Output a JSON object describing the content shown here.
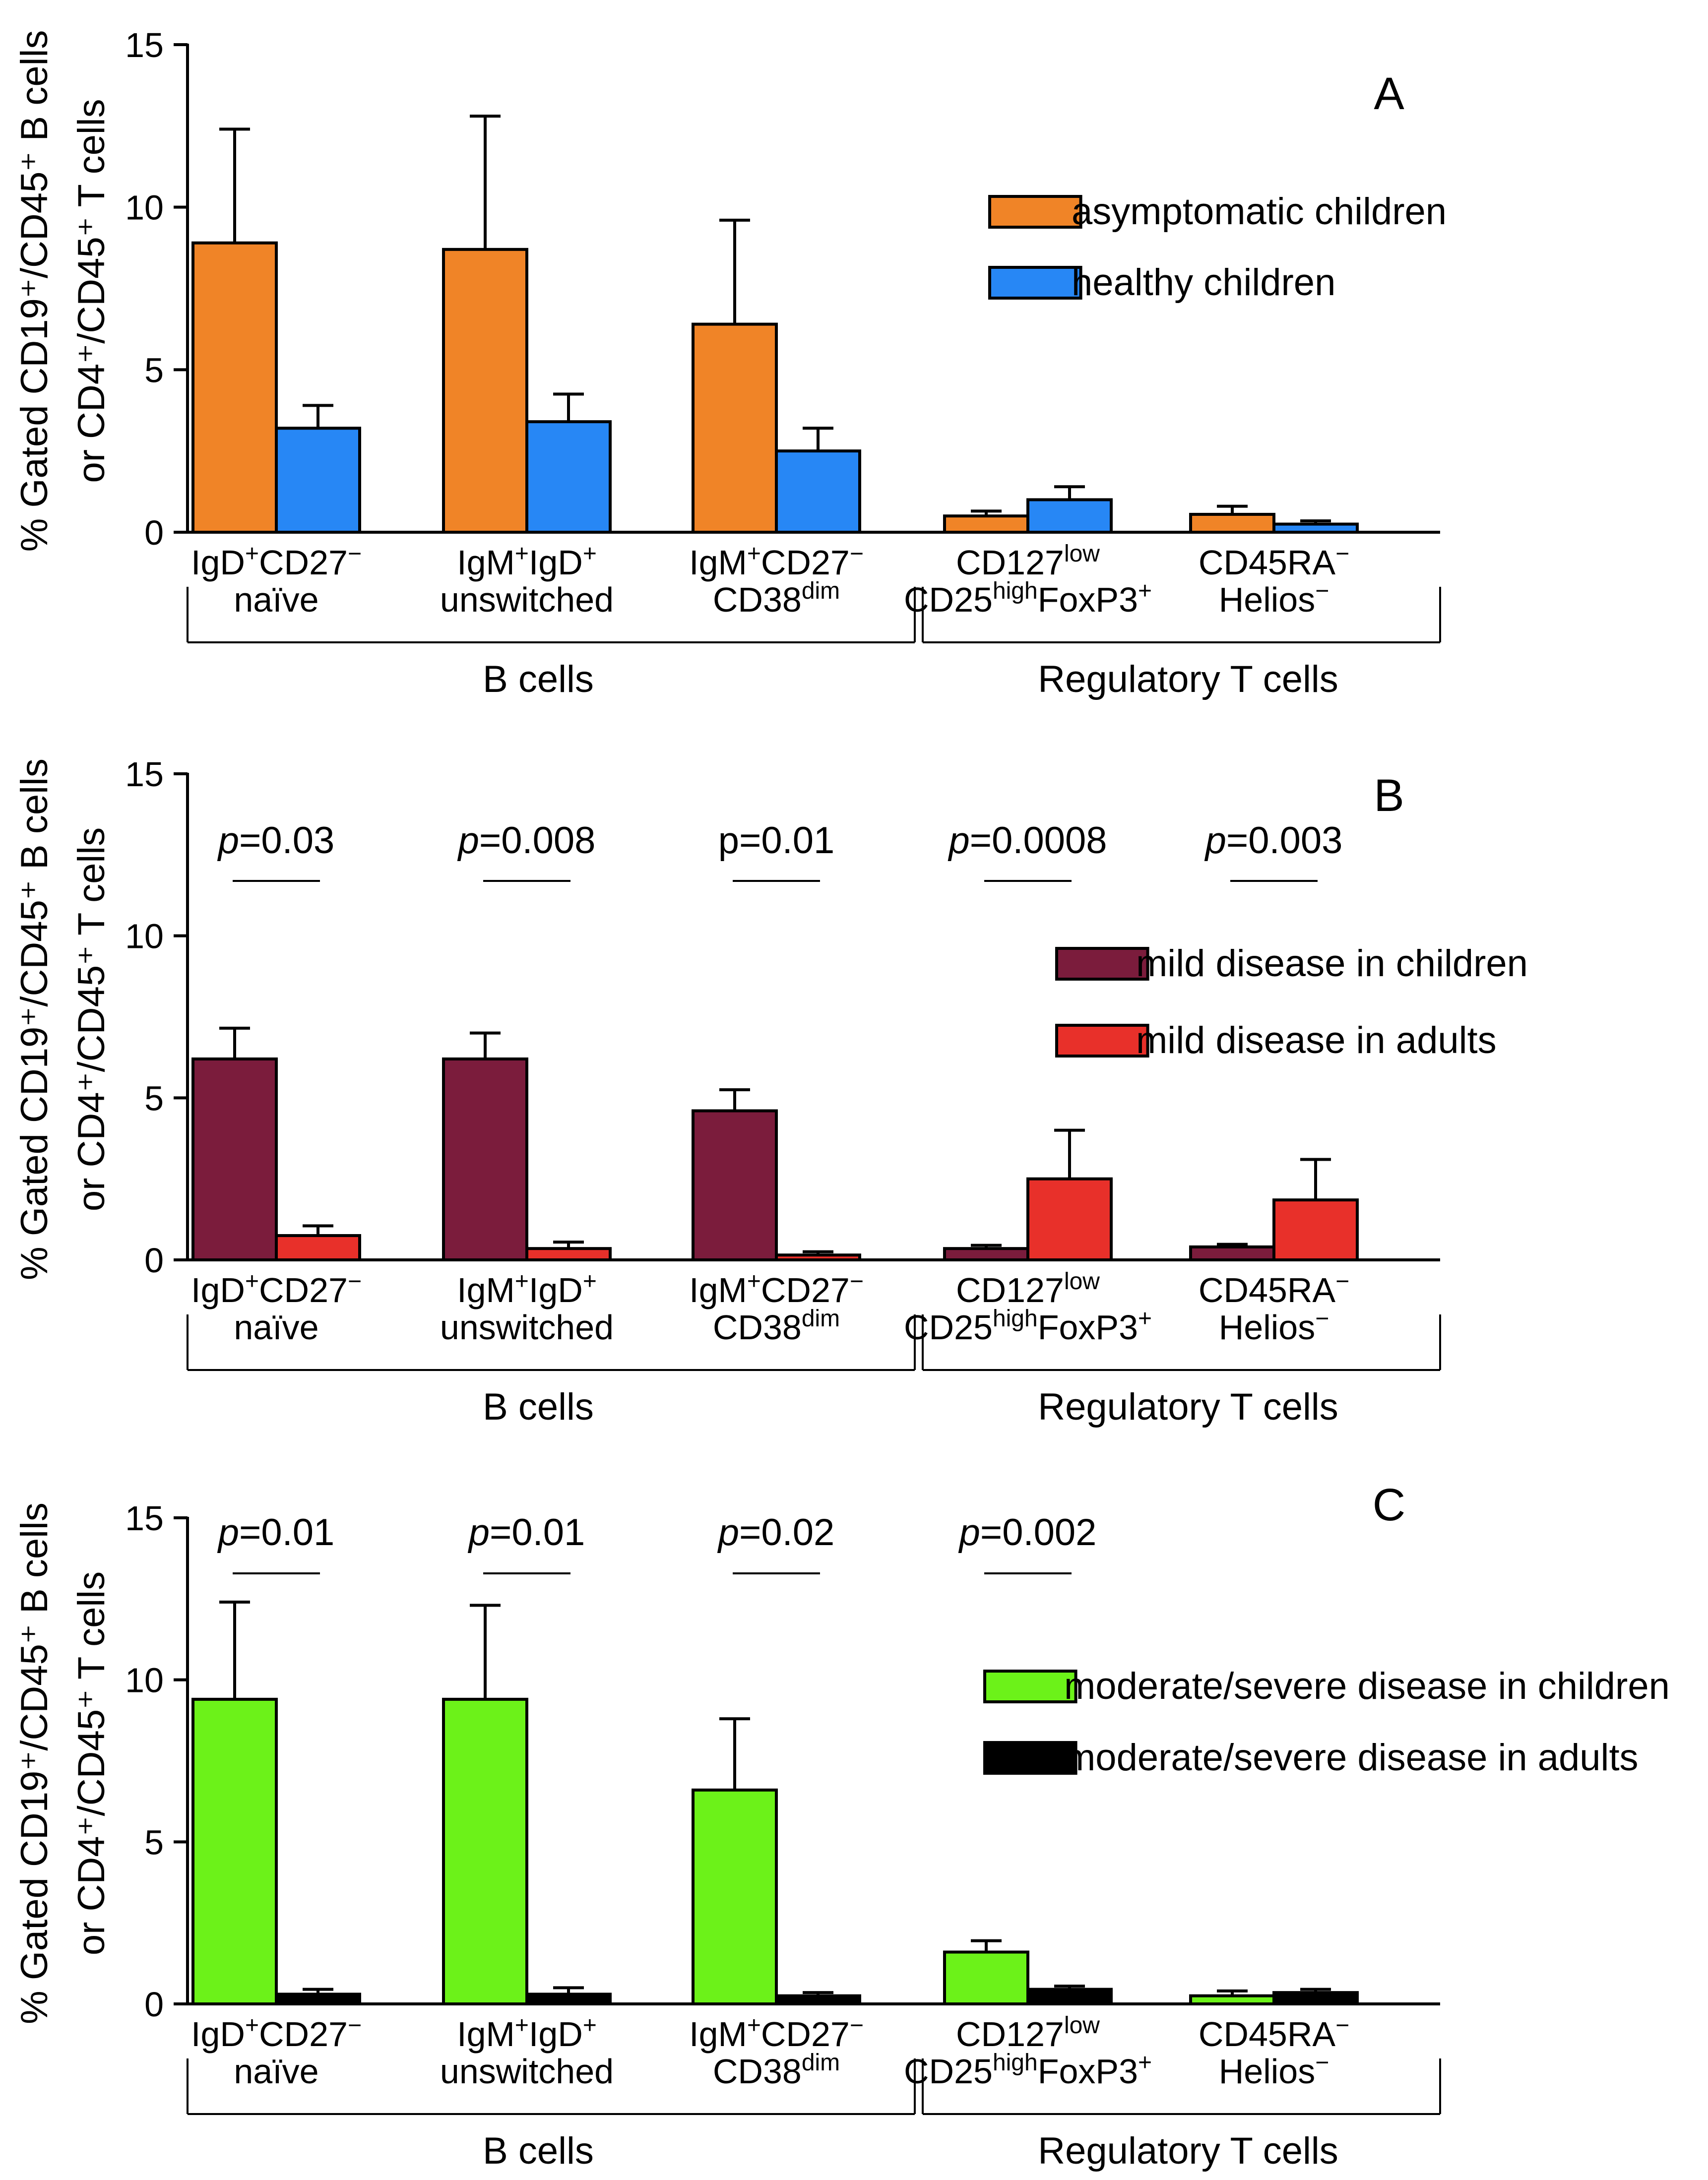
{
  "figure": {
    "y_axis_label_line1": "% Gated CD19⁺/CD45⁺ B cells",
    "y_axis_label_line2": "or CD4⁺/CD45⁺ T cells",
    "group_labels": [
      "B cells",
      "Regulatory T cells"
    ],
    "category_labels": [
      [
        {
          "t": "IgD"
        },
        {
          "t": "+",
          "s": "sup"
        },
        {
          "t": "CD27"
        },
        {
          "t": "−",
          "s": "sup"
        }
      ],
      [
        {
          "t": "naïve"
        }
      ],
      [
        {
          "t": "IgM"
        },
        {
          "t": "+",
          "s": "sup"
        },
        {
          "t": "IgD"
        },
        {
          "t": "+",
          "s": "sup"
        }
      ],
      [
        {
          "t": "unswitched"
        }
      ],
      [
        {
          "t": "IgM"
        },
        {
          "t": "+",
          "s": "sup"
        },
        {
          "t": "CD27"
        },
        {
          "t": "−",
          "s": "sup"
        }
      ],
      [
        {
          "t": "CD38"
        },
        {
          "t": "dim",
          "s": "sup"
        }
      ],
      [
        {
          "t": "CD127"
        },
        {
          "t": "low",
          "s": "sup"
        }
      ],
      [
        {
          "t": "CD25"
        },
        {
          "t": "high",
          "s": "sup"
        },
        {
          "t": "FoxP3"
        },
        {
          "t": "+",
          "s": "sup"
        }
      ],
      [
        {
          "t": "CD45RA"
        },
        {
          "t": "−",
          "s": "sup"
        }
      ],
      [
        {
          "t": "Helios"
        },
        {
          "t": "−",
          "s": "sup"
        }
      ]
    ]
  },
  "colors": {
    "asymptomatic_children": "#F08427",
    "healthy_children": "#2787F5",
    "mild_children": "#7B1C3C",
    "mild_adults": "#E8302A",
    "severe_children": "#6CF219",
    "severe_adults": "#000000"
  },
  "chart_data": [
    {
      "type": "bar",
      "panel_label": "A",
      "ylim": [
        0,
        15
      ],
      "yticks": [
        0,
        5,
        10,
        15
      ],
      "categories": [
        "IgD+CD27− naïve",
        "IgM+IgD+ unswitched",
        "IgM+CD27− CD38dim",
        "CD127low CD25highFoxP3+",
        "CD45RA− Helios−"
      ],
      "groups": [
        {
          "name": "B cells",
          "categories": [
            0,
            1,
            2
          ]
        },
        {
          "name": "Regulatory T cells",
          "categories": [
            3,
            4
          ]
        }
      ],
      "legend_position": "top-right",
      "series": [
        {
          "name": "asymptomatic children",
          "color": "#F08427",
          "values": [
            8.9,
            8.7,
            6.4,
            0.5,
            0.55
          ],
          "errors": [
            3.5,
            4.1,
            3.2,
            0.15,
            0.25
          ]
        },
        {
          "name": "healthy children",
          "color": "#2787F5",
          "values": [
            3.2,
            3.4,
            2.5,
            1.0,
            0.25
          ],
          "errors": [
            0.7,
            0.85,
            0.7,
            0.4,
            0.1
          ]
        }
      ],
      "pvalues": []
    },
    {
      "type": "bar",
      "panel_label": "B",
      "ylim": [
        0,
        15
      ],
      "yticks": [
        0,
        5,
        10,
        15
      ],
      "categories": [
        "IgD+CD27− naïve",
        "IgM+IgD+ unswitched",
        "IgM+CD27− CD38dim",
        "CD127low CD25highFoxP3+",
        "CD45RA− Helios−"
      ],
      "groups": [
        {
          "name": "B cells",
          "categories": [
            0,
            1,
            2
          ]
        },
        {
          "name": "Regulatory T cells",
          "categories": [
            3,
            4
          ]
        }
      ],
      "legend_position": "top-right",
      "series": [
        {
          "name": "mild disease in children",
          "color": "#7B1C3C",
          "values": [
            6.2,
            6.2,
            4.6,
            0.35,
            0.4
          ],
          "errors": [
            0.95,
            0.8,
            0.65,
            0.1,
            0.08
          ]
        },
        {
          "name": "mild disease in adults",
          "color": "#E8302A",
          "values": [
            0.75,
            0.35,
            0.15,
            2.5,
            1.85
          ],
          "errors": [
            0.3,
            0.2,
            0.1,
            1.5,
            1.25
          ]
        }
      ],
      "pvalues": [
        {
          "category": 0,
          "prefix": "p",
          "value": "=0.03"
        },
        {
          "category": 1,
          "prefix": "p",
          "value": "=0.008"
        },
        {
          "category": 2,
          "prefix": "",
          "value": "p=0.01"
        },
        {
          "category": 3,
          "prefix": "p",
          "value": "=0.0008"
        },
        {
          "category": 4,
          "prefix": "p",
          "value": "=0.003"
        }
      ]
    },
    {
      "type": "bar",
      "panel_label": "C",
      "ylim": [
        0,
        15
      ],
      "yticks": [
        0,
        5,
        10,
        15
      ],
      "categories": [
        "IgD+CD27− naïve",
        "IgM+IgD+ unswitched",
        "IgM+CD27− CD38dim",
        "CD127low CD25highFoxP3+",
        "CD45RA− Helios−"
      ],
      "groups": [
        {
          "name": "B cells",
          "categories": [
            0,
            1,
            2
          ]
        },
        {
          "name": "Regulatory T cells",
          "categories": [
            3,
            4
          ]
        }
      ],
      "legend_position": "middle-right",
      "series": [
        {
          "name": "moderate/severe disease in children",
          "color": "#6CF219",
          "values": [
            9.4,
            9.4,
            6.6,
            1.6,
            0.25
          ],
          "errors": [
            3.0,
            2.9,
            2.2,
            0.35,
            0.15
          ]
        },
        {
          "name": "moderate/severe disease in adults",
          "color": "#000000",
          "values": [
            0.3,
            0.3,
            0.25,
            0.45,
            0.35
          ],
          "errors": [
            0.15,
            0.2,
            0.1,
            0.1,
            0.1
          ]
        }
      ],
      "pvalues": [
        {
          "category": 0,
          "prefix": "p",
          "value": "=0.01"
        },
        {
          "category": 1,
          "prefix": "p",
          "value": "=0.01"
        },
        {
          "category": 2,
          "prefix": "p",
          "value": "=0.02"
        },
        {
          "category": 3,
          "prefix": "p",
          "value": "=0.002"
        }
      ]
    }
  ]
}
